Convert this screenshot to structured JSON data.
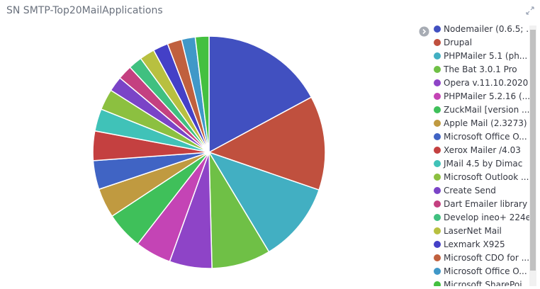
{
  "chart_data": {
    "type": "pie",
    "title": "SN SMTP-Top20MailApplications",
    "categories": [
      "Nodemailer (0.6.5; ...",
      "Drupal",
      "PHPMailer 5.1 (ph...",
      "The Bat 3.0.1 Pro",
      "Opera v.11.10.2020",
      "PHPMailer 5.2.16 (...",
      "ZuckMail [version ...",
      "Apple Mail (2.3273)",
      "Microsoft Office O...",
      "Xerox Mailer /4.03",
      "JMail 4.5 by Dimac",
      "Microsoft Outlook ...",
      "Create Send",
      "Dart Emailer library",
      "Develop ineo+ 224e",
      "LaserNet Mail",
      "Lexmark X925",
      "Microsoft CDO for ...",
      "Microsoft Office O...",
      "Microsoft SharePoi..."
    ],
    "values": [
      17.1,
      13.1,
      11.1,
      8.2,
      5.9,
      5.0,
      5.2,
      4.1,
      4.0,
      4.1,
      3.1,
      2.9,
      2.1,
      2.0,
      1.9,
      2.1,
      2.1,
      2.0,
      1.9,
      1.9
    ],
    "colors": [
      "#4150c0",
      "#c0503e",
      "#42afc2",
      "#6fc046",
      "#8e44c7",
      "#c444b5",
      "#3fc05a",
      "#c09a40",
      "#4064c4",
      "#c44040",
      "#40c2b8",
      "#8cc040",
      "#7a44c7",
      "#c44080",
      "#40c080",
      "#b8c040",
      "#4440c7",
      "#c0603e",
      "#4098c8",
      "#44c040"
    ]
  }
}
